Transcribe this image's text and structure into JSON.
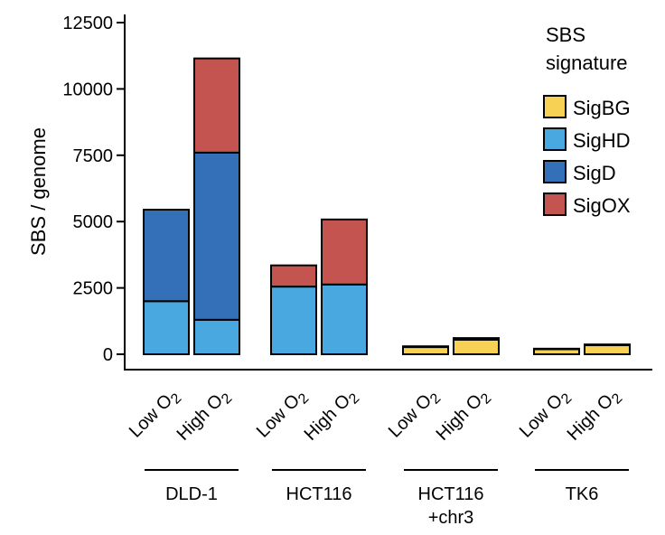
{
  "chart_data": {
    "type": "bar",
    "stacked": true,
    "ylabel": "SBS / genome",
    "xlabel": "",
    "ylim": [
      0,
      12500
    ],
    "yticks": [
      0,
      2500,
      5000,
      7500,
      10000,
      12500
    ],
    "legend": {
      "title_lines": [
        "SBS",
        "signature"
      ],
      "placement": "top-right"
    },
    "series": [
      {
        "name": "SigBG",
        "color": "#F7D154"
      },
      {
        "name": "SigHD",
        "color": "#4AA8E0"
      },
      {
        "name": "SigD",
        "color": "#3470B8"
      },
      {
        "name": "SigOX",
        "color": "#C4544F"
      }
    ],
    "groups": [
      {
        "name_lines": [
          "DLD-1"
        ],
        "bars": [
          {
            "label": "Low O",
            "subscript": "2",
            "values": {
              "SigBG": 0,
              "SigHD": 2000,
              "SigD": 3450,
              "SigOX": 0
            }
          },
          {
            "label": "High O",
            "subscript": "2",
            "values": {
              "SigBG": 0,
              "SigHD": 1300,
              "SigD": 6300,
              "SigOX": 3550
            }
          }
        ]
      },
      {
        "name_lines": [
          "HCT116"
        ],
        "bars": [
          {
            "label": "Low O",
            "subscript": "2",
            "values": {
              "SigBG": 0,
              "SigHD": 2550,
              "SigD": 0,
              "SigOX": 800
            }
          },
          {
            "label": "High O",
            "subscript": "2",
            "values": {
              "SigBG": 0,
              "SigHD": 2630,
              "SigD": 0,
              "SigOX": 2450
            }
          }
        ]
      },
      {
        "name_lines": [
          "HCT116",
          "+chr3"
        ],
        "bars": [
          {
            "label": "Low O",
            "subscript": "2",
            "values": {
              "SigBG": 270,
              "SigHD": 0,
              "SigD": 0,
              "SigOX": 30
            }
          },
          {
            "label": "High O",
            "subscript": "2",
            "values": {
              "SigBG": 550,
              "SigHD": 0,
              "SigD": 0,
              "SigOX": 60
            }
          }
        ]
      },
      {
        "name_lines": [
          "TK6"
        ],
        "bars": [
          {
            "label": "Low O",
            "subscript": "2",
            "values": {
              "SigBG": 190,
              "SigHD": 0,
              "SigD": 0,
              "SigOX": 20
            }
          },
          {
            "label": "High O",
            "subscript": "2",
            "values": {
              "SigBG": 340,
              "SigHD": 0,
              "SigD": 0,
              "SigOX": 30
            }
          }
        ]
      }
    ]
  }
}
